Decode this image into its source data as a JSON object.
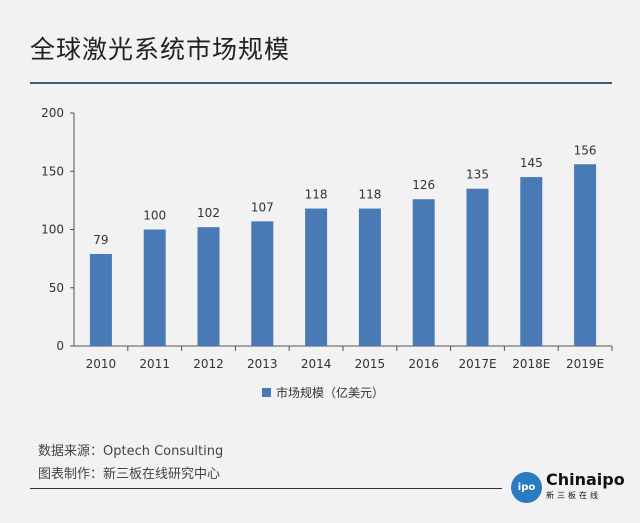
{
  "header": {
    "title": "全球激光系统市场规模"
  },
  "chart_data": {
    "type": "bar",
    "categories": [
      "2010",
      "2011",
      "2012",
      "2013",
      "2014",
      "2015",
      "2016",
      "2017E",
      "2018E",
      "2019E"
    ],
    "series": [
      {
        "name": "市场规模（亿美元）",
        "values": [
          79,
          100,
          102,
          107,
          118,
          118,
          126,
          135,
          145,
          156
        ]
      }
    ],
    "ylim": [
      0,
      200
    ],
    "yticks": [
      0,
      50,
      100,
      150,
      200
    ],
    "grid": false,
    "legend_position": "bottom",
    "bar_color": "#4a7ab5"
  },
  "footer": {
    "source": "数据来源：Optech Consulting",
    "maker": "图表制作：新三板在线研究中心"
  },
  "brand": {
    "logo_top": "China",
    "logo_main": "Chinaipo",
    "logo_sub": "新三板在线",
    "logo_glyph": "ipo"
  }
}
